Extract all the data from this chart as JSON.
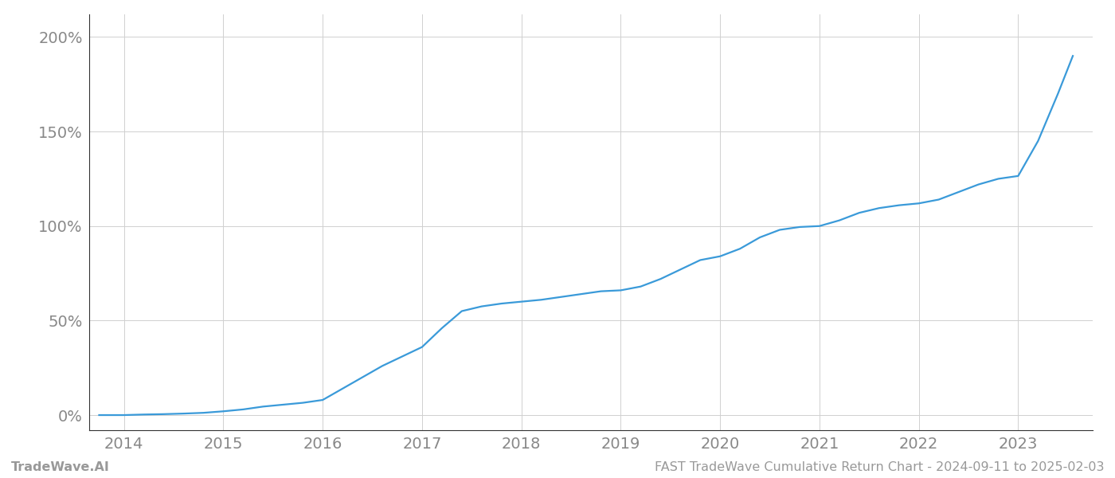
{
  "x_years": [
    2013.75,
    2014.0,
    2014.2,
    2014.4,
    2014.6,
    2014.8,
    2015.0,
    2015.2,
    2015.4,
    2015.6,
    2015.8,
    2016.0,
    2016.2,
    2016.4,
    2016.6,
    2016.8,
    2017.0,
    2017.2,
    2017.4,
    2017.6,
    2017.8,
    2018.0,
    2018.2,
    2018.4,
    2018.6,
    2018.8,
    2019.0,
    2019.2,
    2019.4,
    2019.6,
    2019.8,
    2020.0,
    2020.2,
    2020.4,
    2020.6,
    2020.8,
    2021.0,
    2021.2,
    2021.4,
    2021.6,
    2021.8,
    2022.0,
    2022.2,
    2022.4,
    2022.6,
    2022.8,
    2023.0,
    2023.2,
    2023.4,
    2023.55
  ],
  "y_values": [
    0.0,
    0.0,
    0.3,
    0.5,
    0.8,
    1.2,
    2.0,
    3.0,
    4.5,
    5.5,
    6.5,
    8.0,
    14.0,
    20.0,
    26.0,
    31.0,
    36.0,
    46.0,
    55.0,
    57.5,
    59.0,
    60.0,
    61.0,
    62.5,
    64.0,
    65.5,
    66.0,
    68.0,
    72.0,
    77.0,
    82.0,
    84.0,
    88.0,
    94.0,
    98.0,
    99.5,
    100.0,
    103.0,
    107.0,
    109.5,
    111.0,
    112.0,
    114.0,
    118.0,
    122.0,
    125.0,
    126.5,
    145.0,
    170.0,
    190.0
  ],
  "line_color": "#3a9ad9",
  "line_width": 1.6,
  "background_color": "#ffffff",
  "grid_color": "#d0d0d0",
  "x_ticks": [
    2014,
    2015,
    2016,
    2017,
    2018,
    2019,
    2020,
    2021,
    2022,
    2023
  ],
  "y_ticks": [
    0,
    50,
    100,
    150,
    200
  ],
  "y_tick_labels": [
    "0%",
    "50%",
    "100%",
    "150%",
    "200%"
  ],
  "xlim": [
    2013.65,
    2023.75
  ],
  "ylim": [
    -8,
    212
  ],
  "watermark_left": "TradeWave.AI",
  "watermark_right": "FAST TradeWave Cumulative Return Chart - 2024-09-11 to 2025-02-03",
  "watermark_color": "#999999",
  "watermark_fontsize": 11.5,
  "tick_label_color": "#888888",
  "tick_fontsize": 14,
  "spine_color": "#333333"
}
